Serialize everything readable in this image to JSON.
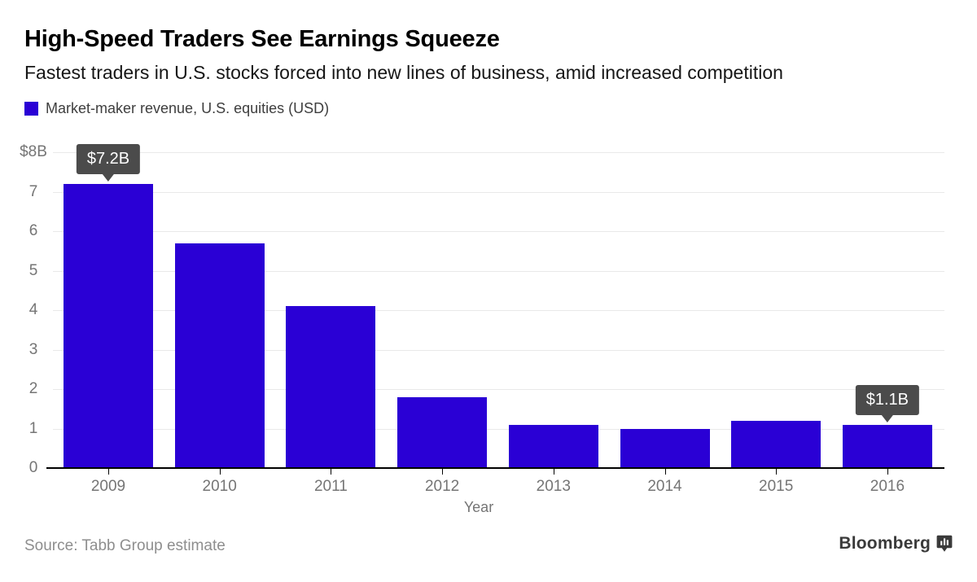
{
  "header": {
    "title": "High-Speed Traders See Earnings Squeeze",
    "subtitle": "Fastest traders in U.S. stocks forced into new lines of business, amid increased competition"
  },
  "legend": {
    "label": "Market-maker revenue, U.S. equities (USD)",
    "swatch_color": "#2A00D5"
  },
  "chart_data": {
    "type": "bar",
    "title": "Market-maker revenue, U.S. equities (USD)",
    "categories": [
      "2009",
      "2010",
      "2011",
      "2012",
      "2013",
      "2014",
      "2015",
      "2016"
    ],
    "values": [
      7.2,
      5.7,
      4.1,
      1.8,
      1.1,
      1.0,
      1.2,
      1.1
    ],
    "xlabel": "Year",
    "ylabel": "",
    "ylim": [
      0,
      8
    ],
    "grid": true,
    "legend_position": "top-left",
    "bar_color": "#2A00D5",
    "gridline_color": "#E9E9E9",
    "axis_text_color": "#757575",
    "y_ticks": [
      {
        "label": "$8B",
        "value": 8
      },
      {
        "label": "7",
        "value": 7
      },
      {
        "label": "6",
        "value": 6
      },
      {
        "label": "5",
        "value": 5
      },
      {
        "label": "4",
        "value": 4
      },
      {
        "label": "3",
        "value": 3
      },
      {
        "label": "2",
        "value": 2
      },
      {
        "label": "1",
        "value": 1
      },
      {
        "label": "0",
        "value": 0
      }
    ],
    "annotations": [
      {
        "text": "$7.2B",
        "category": "2009",
        "color": "#4B4B4B"
      },
      {
        "text": "$1.1B",
        "category": "2016",
        "color": "#4B4B4B"
      }
    ]
  },
  "footer": {
    "source": "Source: Tabb Group estimate",
    "brand": "Bloomberg"
  }
}
